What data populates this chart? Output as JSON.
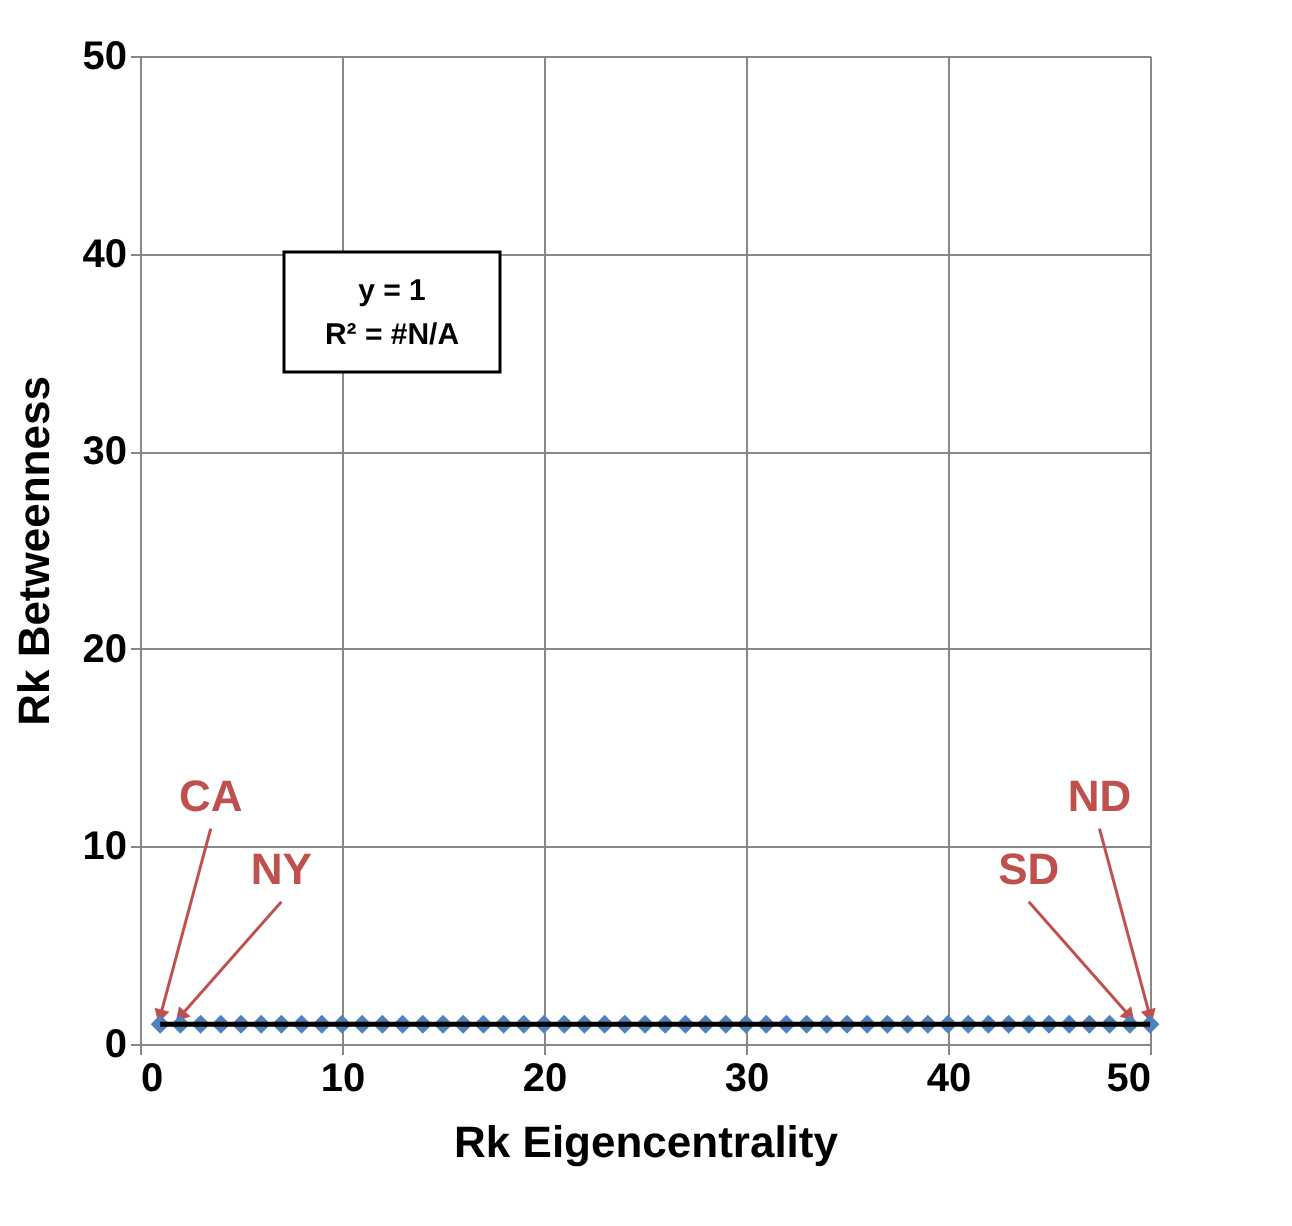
{
  "chart_data": {
    "type": "scatter",
    "xlabel": "Rk Eigencentrality",
    "ylabel": "Rk Betweenness",
    "xlim": [
      0,
      50
    ],
    "ylim": [
      0,
      50
    ],
    "xticks": [
      0,
      10,
      20,
      30,
      40,
      50
    ],
    "yticks": [
      0,
      10,
      20,
      30,
      40,
      50
    ],
    "grid": true,
    "marker": "diamond",
    "series": [
      {
        "color": "#4f81bd",
        "x": [
          1,
          2,
          3,
          4,
          5,
          6,
          7,
          8,
          9,
          10,
          11,
          12,
          13,
          14,
          15,
          16,
          17,
          18,
          19,
          20,
          21,
          22,
          23,
          24,
          25,
          26,
          27,
          28,
          29,
          30,
          31,
          32,
          33,
          34,
          35,
          36,
          37,
          38,
          39,
          40,
          41,
          42,
          43,
          44,
          45,
          46,
          47,
          48,
          49,
          50
        ],
        "values": [
          1,
          1,
          1,
          1,
          1,
          1,
          1,
          1,
          1,
          1,
          1,
          1,
          1,
          1,
          1,
          1,
          1,
          1,
          1,
          1,
          1,
          1,
          1,
          1,
          1,
          1,
          1,
          1,
          1,
          1,
          1,
          1,
          1,
          1,
          1,
          1,
          1,
          1,
          1,
          1,
          1,
          1,
          1,
          1,
          1,
          1,
          1,
          1,
          1,
          1
        ]
      },
      {
        "type": "line",
        "color": "#000000",
        "marker": "none",
        "x": [
          1,
          50
        ],
        "values": [
          1,
          1
        ]
      }
    ],
    "annotations": [
      "y = 1\nR² = #N/A",
      {
        "text": "CA",
        "x": 1,
        "y": 1
      },
      {
        "text": "NY",
        "x": 2,
        "y": 1
      },
      {
        "text": "SD",
        "x": 49,
        "y": 1
      },
      {
        "text": "ND",
        "x": 50,
        "y": 1
      }
    ]
  }
}
